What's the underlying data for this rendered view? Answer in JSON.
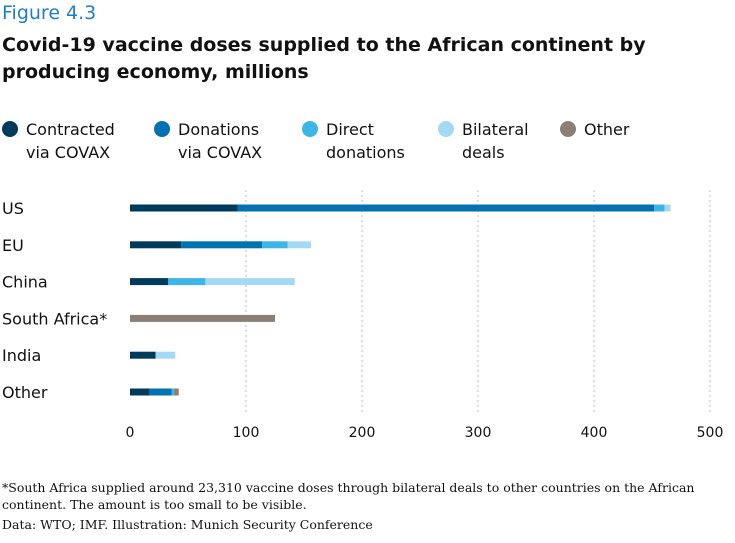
{
  "figure_label": "Figure 4.3",
  "chart_data": {
    "type": "bar",
    "orientation": "horizontal",
    "stacked": true,
    "title": "Covid-19 vaccine doses supplied to the African continent by producing economy, millions",
    "categories": [
      "US",
      "EU",
      "China",
      "South Africa*",
      "India",
      "Other"
    ],
    "series": [
      {
        "name": "Contracted via COVAX",
        "color": "#003a5d",
        "values": [
          93,
          44,
          33,
          0,
          22,
          17
        ]
      },
      {
        "name": "Donations via COVAX",
        "color": "#0072b1",
        "values": [
          359,
          70,
          0,
          0,
          0,
          19
        ]
      },
      {
        "name": "Direct donations",
        "color": "#3db5e6",
        "values": [
          9,
          22,
          32,
          0,
          0,
          2
        ]
      },
      {
        "name": "Bilateral deals",
        "color": "#a4d9f5",
        "values": [
          5,
          20,
          77,
          0,
          17,
          0
        ]
      },
      {
        "name": "Other",
        "color": "#8b7f75",
        "values": [
          0,
          0,
          0,
          125,
          0,
          4
        ]
      }
    ],
    "xlim": [
      0,
      500
    ],
    "xticks": [
      "0",
      "100",
      "200",
      "300",
      "400",
      "500"
    ],
    "grid": "vertical dotted",
    "legend": "top",
    "xlabel": "",
    "ylabel": ""
  },
  "legend_labels": [
    "Contracted\nvia COVAX",
    "Donations\nvia COVAX",
    "Direct\ndonations",
    "Bilateral\ndeals",
    "Other"
  ],
  "footnote": "*South Africa supplied around 23,310 vaccine doses through bilateral deals to other countries on the African continent. The amount is too small to be visible.",
  "source": "Data: WTO; IMF. Illustration: Munich Security Conference"
}
